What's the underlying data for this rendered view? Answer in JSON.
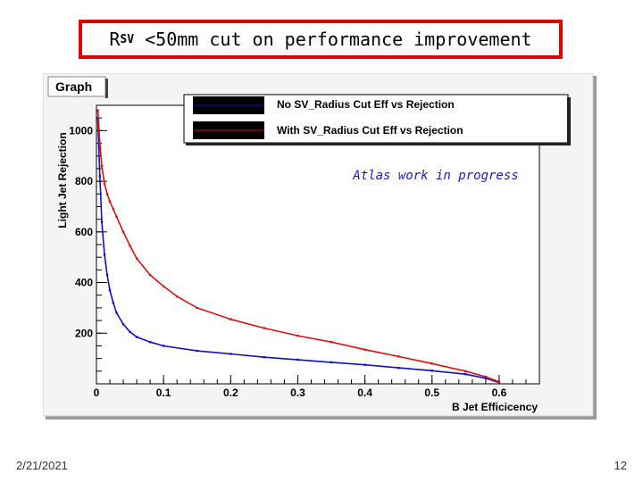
{
  "slide": {
    "title": "R<sub>SV</sub> <50mm cut on performance improvement",
    "title_plain_main": "R",
    "title_sub": "SV",
    "title_rest": " <50mm cut on performance improvement",
    "date": "2/21/2021",
    "page_number": "12"
  },
  "chart_data": {
    "type": "line",
    "frame_title": "Graph",
    "annotation": "Atlas work in progress",
    "xlabel": "B Jet Efficicency",
    "ylabel": "Light Jet Rejection",
    "xlim": [
      0,
      0.66
    ],
    "ylim": [
      0,
      1100
    ],
    "xticks": [
      0,
      0.1,
      0.2,
      0.3,
      0.4,
      0.5,
      0.6
    ],
    "xtick_labels": [
      "0",
      "0.1",
      "0.2",
      "0.3",
      "0.4",
      "0.5",
      "0.6"
    ],
    "yticks": [
      200,
      400,
      600,
      800,
      1000
    ],
    "ytick_labels": [
      "200",
      "400",
      "600",
      "800",
      "1000"
    ],
    "legend_position": "top",
    "series": [
      {
        "name": "No SV_Radius Cut Eff vs Rejection",
        "color": "#1010cc",
        "x": [
          0.002,
          0.005,
          0.008,
          0.012,
          0.016,
          0.02,
          0.025,
          0.03,
          0.04,
          0.05,
          0.06,
          0.08,
          0.1,
          0.15,
          0.2,
          0.25,
          0.3,
          0.35,
          0.4,
          0.45,
          0.5,
          0.55,
          0.58,
          0.6
        ],
        "y": [
          1050,
          820,
          640,
          510,
          430,
          370,
          320,
          280,
          235,
          205,
          185,
          165,
          150,
          130,
          118,
          105,
          95,
          85,
          75,
          63,
          52,
          38,
          22,
          5
        ]
      },
      {
        "name": "With SV_Radius Cut Eff vs Rejection",
        "color": "#dd1010",
        "x": [
          0.002,
          0.005,
          0.008,
          0.012,
          0.016,
          0.02,
          0.025,
          0.03,
          0.04,
          0.05,
          0.06,
          0.08,
          0.1,
          0.12,
          0.15,
          0.2,
          0.25,
          0.3,
          0.35,
          0.4,
          0.45,
          0.5,
          0.55,
          0.58,
          0.6
        ],
        "y": [
          1080,
          950,
          860,
          790,
          750,
          720,
          690,
          660,
          600,
          545,
          495,
          430,
          385,
          345,
          300,
          255,
          220,
          190,
          165,
          135,
          108,
          80,
          50,
          28,
          8
        ]
      }
    ]
  }
}
